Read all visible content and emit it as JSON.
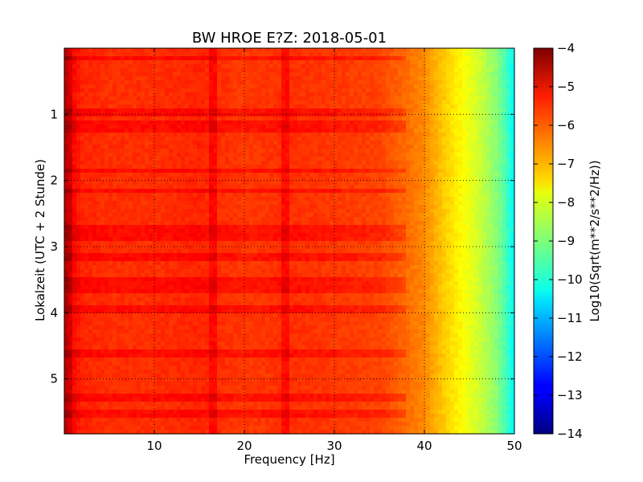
{
  "chart_data": {
    "type": "heatmap",
    "title": "BW HROE E?Z: 2018-05-01",
    "xlabel": "Frequency [Hz]",
    "ylabel": "Lokalzeit (UTC + 2 Stunde)",
    "xlim": [
      0,
      50
    ],
    "ylim": [
      5.83,
      0
    ],
    "x_ticks": [
      10,
      20,
      30,
      40,
      50
    ],
    "x_tick_labels": [
      "10",
      "20",
      "30",
      "40",
      "50"
    ],
    "y_ticks": [
      1,
      2,
      3,
      4,
      5
    ],
    "y_tick_labels": [
      "1",
      "2",
      "3",
      "4",
      "5"
    ],
    "grid": true,
    "colorbar": {
      "label": "Log10(Sqrt(m**2/s**2/Hz))",
      "colormap": "jet",
      "range": [
        -14,
        -4
      ],
      "ticks": [
        -4,
        -5,
        -6,
        -7,
        -8,
        -9,
        -10,
        -11,
        -12,
        -13,
        -14
      ],
      "tick_labels": [
        "−4",
        "−5",
        "−6",
        "−7",
        "−8",
        "−9",
        "−10",
        "−11",
        "−12",
        "−13",
        "−14"
      ]
    },
    "spectral_profile": {
      "frequency_hz": [
        0,
        1,
        2,
        5,
        10,
        15,
        20,
        25,
        30,
        35,
        38,
        40,
        42,
        44,
        46,
        48,
        49,
        50
      ],
      "log_psd": [
        -4.9,
        -5.3,
        -5.6,
        -5.7,
        -5.7,
        -5.6,
        -5.8,
        -5.7,
        -5.8,
        -5.9,
        -6.3,
        -6.6,
        -7.2,
        -7.7,
        -8.2,
        -8.9,
        -9.5,
        -10.3
      ]
    },
    "highlights": {
      "vertical_lines_hz": [
        0.5,
        16.5,
        24.5
      ],
      "horizontal_bands_hours": [
        0.15,
        0.95,
        1.15,
        1.25,
        1.85,
        2.15,
        2.75,
        2.85,
        3.15,
        3.5,
        3.65,
        3.95,
        4.6,
        5.3,
        5.55
      ]
    }
  }
}
